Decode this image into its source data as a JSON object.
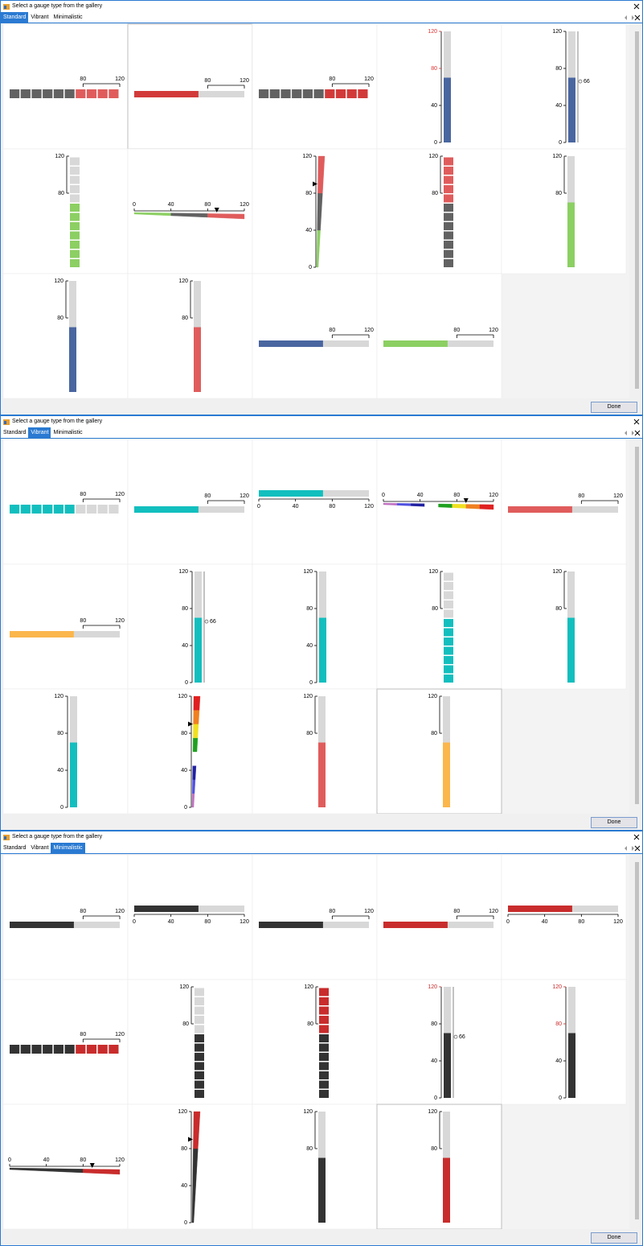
{
  "range": [
    0,
    120
  ],
  "windows": [
    {
      "title": "Select a gauge type from the gallery",
      "tabs": [
        "Standard",
        "Vibrant",
        "Minimalistic"
      ],
      "selected_tab": 0,
      "done": "Done",
      "selected_cell": 1,
      "gauges": [
        {
          "kind": "h-seg",
          "value": 70,
          "fill": "#626262",
          "rest": "#e05c5c",
          "ticks": [
            80,
            120
          ]
        },
        {
          "kind": "h-bar",
          "value": 70,
          "fill": "#d23a3a",
          "rest": "#d8d8d8",
          "ticks": [
            80,
            120
          ]
        },
        {
          "kind": "h-seg",
          "value": 70,
          "fill": "#626262",
          "rest": "#d23a3a",
          "ticks": [
            80,
            120
          ]
        },
        {
          "kind": "v-scale",
          "value": 70,
          "fill": "#4a66a0",
          "rest": "#d8d8d8",
          "ticks": [
            0,
            40,
            80,
            120
          ],
          "tick_colors": [
            "#000000",
            "#000000",
            "#e03030",
            "#e03030"
          ]
        },
        {
          "kind": "v-scale",
          "value": 70,
          "fill": "#4a66a0",
          "rest": "#d8d8d8",
          "ticks": [
            0,
            40,
            80,
            120
          ],
          "marker": 66
        },
        {
          "kind": "v-seg",
          "value": 70,
          "fill": "#8ccf63",
          "rest": "#d8d8d8",
          "ticks": [
            80,
            120
          ]
        },
        {
          "kind": "h-wedge",
          "colors": [
            "#8ccf63",
            "#626262",
            "#e05c5c"
          ],
          "marker": 90,
          "ticks": [
            0,
            40,
            80,
            120
          ]
        },
        {
          "kind": "v-wedge",
          "colors": [
            "#8ccf63",
            "#626262",
            "#e05c5c"
          ],
          "marker": 90,
          "ticks": [
            0,
            40,
            80,
            120
          ]
        },
        {
          "kind": "v-seg",
          "value": 70,
          "fill": "#626262",
          "rest": "#e05c5c",
          "ticks": [
            80,
            120
          ]
        },
        {
          "kind": "v-bar",
          "value": 70,
          "fill": "#8ccf63",
          "rest": "#d8d8d8",
          "ticks": [
            80,
            120
          ]
        },
        {
          "kind": "v-bar",
          "value": 70,
          "fill": "#4a66a0",
          "rest": "#d8d8d8",
          "ticks": [
            80,
            120
          ]
        },
        {
          "kind": "v-bar",
          "value": 70,
          "fill": "#e05c5c",
          "rest": "#d8d8d8",
          "ticks": [
            80,
            120
          ]
        },
        {
          "kind": "h-bar",
          "value": 70,
          "fill": "#4a66a0",
          "rest": "#d8d8d8",
          "ticks": [
            80,
            120
          ]
        },
        {
          "kind": "h-bar",
          "value": 70,
          "fill": "#8ccf63",
          "rest": "#d8d8d8",
          "ticks": [
            80,
            120
          ]
        }
      ]
    },
    {
      "title": "Select a gauge type from the gallery",
      "tabs": [
        "Standard",
        "Vibrant",
        "Minimalistic"
      ],
      "selected_tab": 1,
      "done": "Done",
      "selected_cell": 13,
      "gauges": [
        {
          "kind": "h-seg",
          "value": 70,
          "fill": "#12bfbe",
          "rest": "#d8d8d8",
          "ticks": [
            80,
            120
          ]
        },
        {
          "kind": "h-bar",
          "value": 70,
          "fill": "#12bfbe",
          "rest": "#d8d8d8",
          "ticks": [
            80,
            120
          ]
        },
        {
          "kind": "h-bar-scale",
          "value": 70,
          "fill": "#12bfbe",
          "rest": "#d8d8d8",
          "ticks": [
            0,
            40,
            80,
            120
          ]
        },
        {
          "kind": "h-wedge",
          "colors": [
            "#c070c0",
            "#5050e0",
            "#2020a0",
            "#ffffff",
            "#20a020",
            "#f0e020",
            "#f08020",
            "#e02020"
          ],
          "marker": 90,
          "ticks": [
            0,
            40,
            80,
            120
          ]
        },
        {
          "kind": "h-bar",
          "value": 70,
          "fill": "#e05c5c",
          "rest": "#d8d8d8",
          "ticks": [
            80,
            120
          ]
        },
        {
          "kind": "h-bar",
          "value": 70,
          "fill": "#fbb64c",
          "rest": "#d8d8d8",
          "ticks": [
            80,
            120
          ]
        },
        {
          "kind": "v-scale",
          "value": 70,
          "fill": "#12bfbe",
          "rest": "#d8d8d8",
          "ticks": [
            0,
            40,
            80,
            120
          ],
          "marker": 66
        },
        {
          "kind": "v-scale",
          "value": 70,
          "fill": "#12bfbe",
          "rest": "#d8d8d8",
          "ticks": [
            0,
            40,
            80,
            120
          ]
        },
        {
          "kind": "v-seg",
          "value": 70,
          "fill": "#12bfbe",
          "rest": "#d8d8d8",
          "ticks": [
            80,
            120
          ]
        },
        {
          "kind": "v-bar",
          "value": 70,
          "fill": "#12bfbe",
          "rest": "#d8d8d8",
          "ticks": [
            80,
            120
          ]
        },
        {
          "kind": "v-scale",
          "value": 70,
          "fill": "#12bfbe",
          "rest": "#d8d8d8",
          "ticks": [
            0,
            40,
            80,
            120
          ]
        },
        {
          "kind": "v-wedge",
          "colors": [
            "#c070c0",
            "#5050e0",
            "#2020a0",
            "#ffffff",
            "#20a020",
            "#f0e020",
            "#f08020",
            "#e02020"
          ],
          "marker": 90,
          "ticks": [
            0,
            40,
            80,
            120
          ]
        },
        {
          "kind": "v-bar",
          "value": 70,
          "fill": "#e05c5c",
          "rest": "#d8d8d8",
          "ticks": [
            80,
            120
          ]
        },
        {
          "kind": "v-bar",
          "value": 70,
          "fill": "#fbb64c",
          "rest": "#d8d8d8",
          "ticks": [
            80,
            120
          ]
        }
      ]
    },
    {
      "title": "Select a gauge type from the gallery",
      "tabs": [
        "Standard",
        "Vibrant",
        "Minimalistic"
      ],
      "selected_tab": 2,
      "done": "Done",
      "selected_cell": 13,
      "gauges": [
        {
          "kind": "h-bar",
          "value": 70,
          "fill": "#333333",
          "rest": "#d8d8d8",
          "ticks": [
            80,
            120
          ]
        },
        {
          "kind": "h-bar-scale",
          "value": 70,
          "fill": "#333333",
          "rest": "#d8d8d8",
          "ticks": [
            0,
            40,
            80,
            120
          ]
        },
        {
          "kind": "h-bar",
          "value": 70,
          "fill": "#333333",
          "rest": "#d8d8d8",
          "ticks": [
            80,
            120
          ]
        },
        {
          "kind": "h-bar",
          "value": 70,
          "fill": "#c92c2c",
          "rest": "#d8d8d8",
          "ticks": [
            80,
            120
          ]
        },
        {
          "kind": "h-bar-scale",
          "value": 70,
          "fill": "#c92c2c",
          "rest": "#d8d8d8",
          "ticks": [
            0,
            40,
            80,
            120
          ]
        },
        {
          "kind": "h-seg",
          "value": 70,
          "fill": "#333333",
          "rest": "#c92c2c",
          "ticks": [
            80,
            120
          ]
        },
        {
          "kind": "v-seg",
          "value": 70,
          "fill": "#333333",
          "rest": "#d8d8d8",
          "ticks": [
            80,
            120
          ]
        },
        {
          "kind": "v-seg",
          "value": 70,
          "fill": "#333333",
          "rest": "#c92c2c",
          "ticks": [
            80,
            120
          ]
        },
        {
          "kind": "v-scale",
          "value": 70,
          "fill": "#333333",
          "rest": "#d8d8d8",
          "ticks": [
            0,
            40,
            80,
            120
          ],
          "marker": 66,
          "tick_colors": [
            "#000000",
            "#000000",
            "#000000",
            "#c92c2c"
          ]
        },
        {
          "kind": "v-scale",
          "value": 70,
          "fill": "#333333",
          "rest": "#d8d8d8",
          "ticks": [
            0,
            40,
            80,
            120
          ],
          "tick_colors": [
            "#000000",
            "#000000",
            "#c92c2c",
            "#c92c2c"
          ]
        },
        {
          "kind": "h-wedge",
          "colors": [
            "#333333",
            "#333333",
            "#c92c2c"
          ],
          "marker": 90,
          "ticks": [
            0,
            40,
            80,
            120
          ]
        },
        {
          "kind": "v-wedge",
          "colors": [
            "#333333",
            "#333333",
            "#c92c2c"
          ],
          "marker": 90,
          "ticks": [
            0,
            40,
            80,
            120
          ]
        },
        {
          "kind": "v-bar",
          "value": 70,
          "fill": "#333333",
          "rest": "#d8d8d8",
          "ticks": [
            80,
            120
          ]
        },
        {
          "kind": "v-bar",
          "value": 70,
          "fill": "#c92c2c",
          "rest": "#d8d8d8",
          "ticks": [
            80,
            120
          ]
        }
      ]
    }
  ]
}
